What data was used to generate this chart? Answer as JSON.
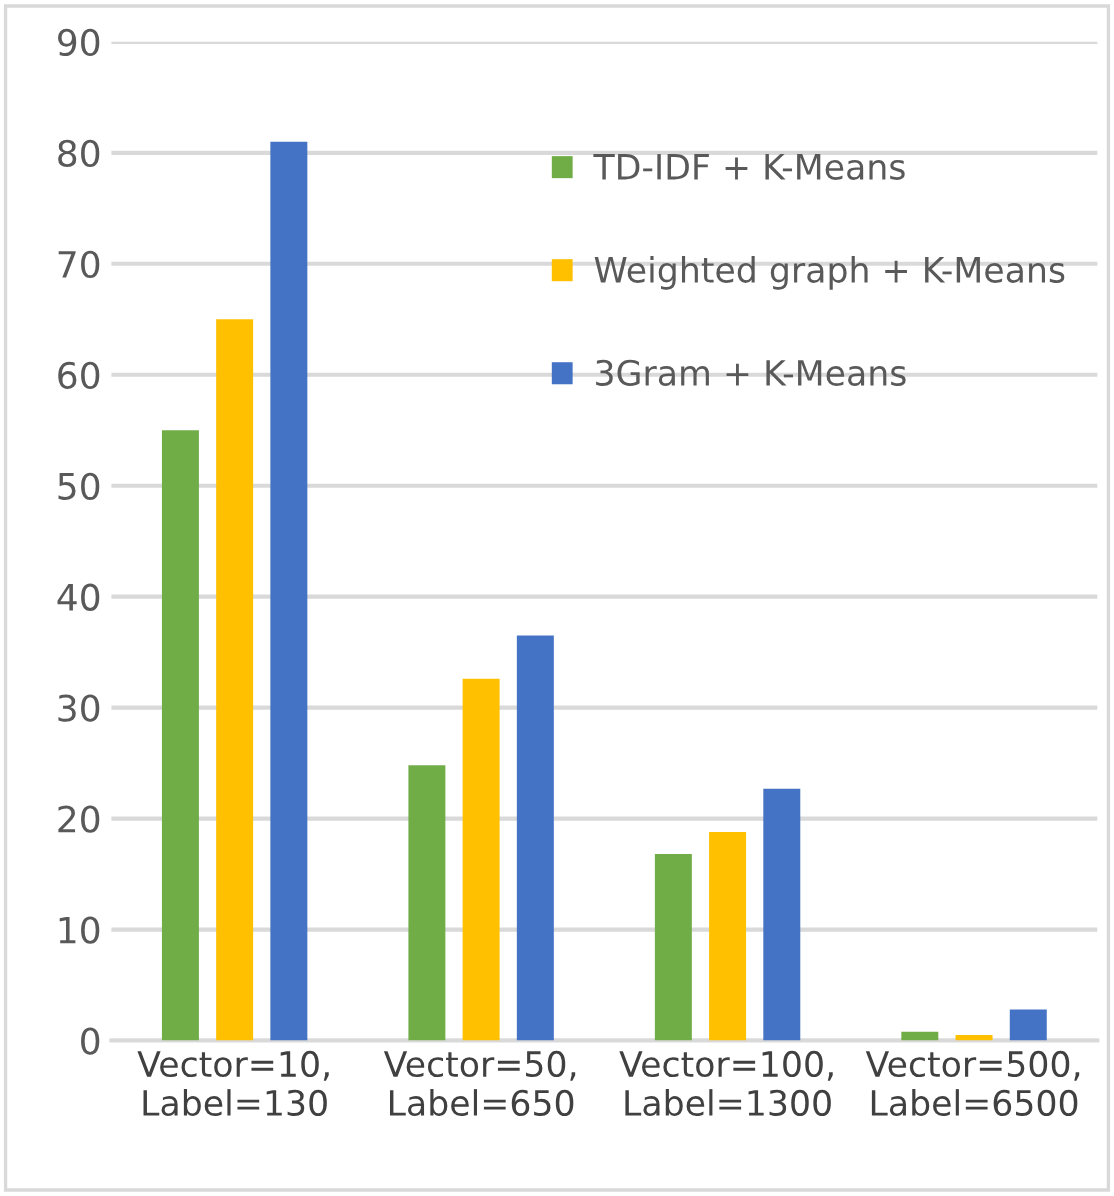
{
  "chart_data": {
    "type": "bar",
    "categories": [
      "Vector=10,\nLabel=130",
      "Vector=50,\nLabel=650",
      "Vector=100,\nLabel=1300",
      "Vector=500,\nLabel=6500"
    ],
    "series": [
      {
        "name": "TD-IDF + K-Means",
        "color": "#70ad47",
        "values": [
          55,
          24.8,
          16.8,
          0.8
        ]
      },
      {
        "name": "Weighted graph + K-Means",
        "color": "#ffc000",
        "values": [
          65,
          32.6,
          18.8,
          0.5
        ]
      },
      {
        "name": "3Gram + K-Means",
        "color": "#4472c4",
        "values": [
          81,
          36.5,
          22.7,
          2.8
        ]
      }
    ],
    "ylim": [
      0,
      90
    ],
    "yticks": [
      0,
      10,
      20,
      30,
      40,
      50,
      60,
      70,
      80,
      90
    ],
    "grid": "y",
    "legend": "top right"
  }
}
